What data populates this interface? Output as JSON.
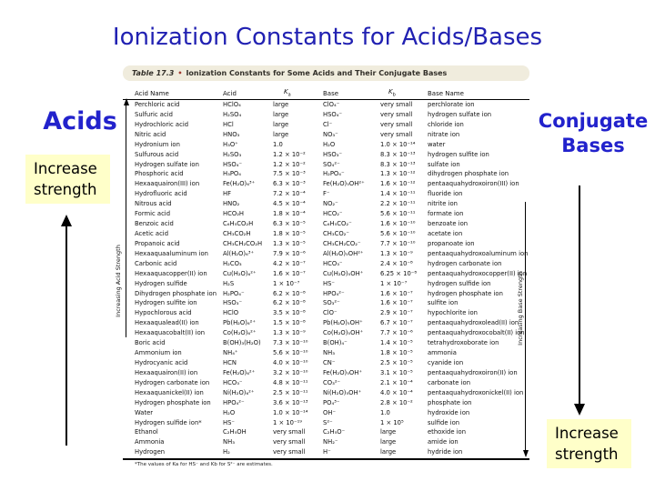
{
  "slide": {
    "title": "Ionization Constants for Acids/Bases",
    "acids_label": "Acids",
    "conjugate_label_line1": "Conjugate",
    "conjugate_label_line2": "Bases",
    "increase_strength": "Increase strength",
    "colors": {
      "title_blue": "#2121b2",
      "label_blue": "#2222cc",
      "highlight_yellow": "#ffffc9",
      "caption_bar_cream": "#f0ecdd"
    }
  },
  "table": {
    "caption_label": "Table 17.3",
    "caption_bullet": "•",
    "caption_title": "Ionization Constants for Some Acids and Their Conjugate Bases",
    "columns": {
      "acid_name": "Acid Name",
      "acid": "Acid",
      "k_symbol": "K",
      "ka_sub": "a",
      "base": "Base",
      "kb_sub": "b",
      "base_name": "Base Name"
    },
    "left_axis_label": "Increasing Acid Strength",
    "right_axis_label": "Increasing Base Strength",
    "footnote": "*The values of Ka for HS⁻ and Kb for S²⁻ are estimates.",
    "rows": [
      {
        "name": "Perchloric acid",
        "acid": "HClO₄",
        "ka": "large",
        "base": "ClO₄⁻",
        "kb": "very small",
        "base_name": "perchlorate ion"
      },
      {
        "name": "Sulfuric acid",
        "acid": "H₂SO₄",
        "ka": "large",
        "base": "HSO₄⁻",
        "kb": "very small",
        "base_name": "hydrogen sulfate ion"
      },
      {
        "name": "Hydrochloric acid",
        "acid": "HCl",
        "ka": "large",
        "base": "Cl⁻",
        "kb": "very small",
        "base_name": "chloride ion"
      },
      {
        "name": "Nitric acid",
        "acid": "HNO₃",
        "ka": "large",
        "base": "NO₃⁻",
        "kb": "very small",
        "base_name": "nitrate ion"
      },
      {
        "name": "Hydronium ion",
        "acid": "H₃O⁺",
        "ka": "1.0",
        "base": "H₂O",
        "kb": "1.0 × 10⁻¹⁴",
        "base_name": "water"
      },
      {
        "name": "Sulfurous acid",
        "acid": "H₂SO₃",
        "ka": "1.2 × 10⁻²",
        "base": "HSO₃⁻",
        "kb": "8.3 × 10⁻¹³",
        "base_name": "hydrogen sulfite ion"
      },
      {
        "name": "Hydrogen sulfate ion",
        "acid": "HSO₄⁻",
        "ka": "1.2 × 10⁻²",
        "base": "SO₄²⁻",
        "kb": "8.3 × 10⁻¹³",
        "base_name": "sulfate ion"
      },
      {
        "name": "Phosphoric acid",
        "acid": "H₃PO₄",
        "ka": "7.5 × 10⁻³",
        "base": "H₂PO₄⁻",
        "kb": "1.3 × 10⁻¹²",
        "base_name": "dihydrogen phosphate ion"
      },
      {
        "name": "Hexaaquairon(III) ion",
        "acid": "Fe(H₂O)₆³⁺",
        "ka": "6.3 × 10⁻³",
        "base": "Fe(H₂O)₅OH²⁺",
        "kb": "1.6 × 10⁻¹²",
        "base_name": "pentaaquahydroxoiron(III) ion"
      },
      {
        "name": "Hydrofluoric acid",
        "acid": "HF",
        "ka": "7.2 × 10⁻⁴",
        "base": "F⁻",
        "kb": "1.4 × 10⁻¹¹",
        "base_name": "fluoride ion"
      },
      {
        "name": "Nitrous acid",
        "acid": "HNO₂",
        "ka": "4.5 × 10⁻⁴",
        "base": "NO₂⁻",
        "kb": "2.2 × 10⁻¹¹",
        "base_name": "nitrite ion"
      },
      {
        "name": "Formic acid",
        "acid": "HCO₂H",
        "ka": "1.8 × 10⁻⁴",
        "base": "HCO₂⁻",
        "kb": "5.6 × 10⁻¹¹",
        "base_name": "formate ion"
      },
      {
        "name": "Benzoic acid",
        "acid": "C₆H₅CO₂H",
        "ka": "6.3 × 10⁻⁵",
        "base": "C₆H₅CO₂⁻",
        "kb": "1.6 × 10⁻¹⁰",
        "base_name": "benzoate ion"
      },
      {
        "name": "Acetic acid",
        "acid": "CH₃CO₂H",
        "ka": "1.8 × 10⁻⁵",
        "base": "CH₃CO₂⁻",
        "kb": "5.6 × 10⁻¹⁰",
        "base_name": "acetate ion"
      },
      {
        "name": "Propanoic acid",
        "acid": "CH₃CH₂CO₂H",
        "ka": "1.3 × 10⁻⁵",
        "base": "CH₃CH₂CO₂⁻",
        "kb": "7.7 × 10⁻¹⁰",
        "base_name": "propanoate ion"
      },
      {
        "name": "Hexaaquaaluminum ion",
        "acid": "Al(H₂O)₆³⁺",
        "ka": "7.9 × 10⁻⁶",
        "base": "Al(H₂O)₅OH²⁺",
        "kb": "1.3 × 10⁻⁹",
        "base_name": "pentaaquahydroxoaluminum ion"
      },
      {
        "name": "Carbonic acid",
        "acid": "H₂CO₃",
        "ka": "4.2 × 10⁻⁷",
        "base": "HCO₃⁻",
        "kb": "2.4 × 10⁻⁸",
        "base_name": "hydrogen carbonate ion"
      },
      {
        "name": "Hexaaquacopper(II) ion",
        "acid": "Cu(H₂O)₆²⁺",
        "ka": "1.6 × 10⁻⁷",
        "base": "Cu(H₂O)₅OH⁺",
        "kb": "6.25 × 10⁻⁸",
        "base_name": "pentaaquahydroxocopper(II) ion"
      },
      {
        "name": "Hydrogen sulfide",
        "acid": "H₂S",
        "ka": "1 × 10⁻⁷",
        "base": "HS⁻",
        "kb": "1 × 10⁻⁷",
        "base_name": "hydrogen sulfide ion"
      },
      {
        "name": "Dihydrogen phosphate ion",
        "acid": "H₂PO₄⁻",
        "ka": "6.2 × 10⁻⁸",
        "base": "HPO₄²⁻",
        "kb": "1.6 × 10⁻⁷",
        "base_name": "hydrogen phosphate ion"
      },
      {
        "name": "Hydrogen sulfite ion",
        "acid": "HSO₃⁻",
        "ka": "6.2 × 10⁻⁸",
        "base": "SO₃²⁻",
        "kb": "1.6 × 10⁻⁷",
        "base_name": "sulfite ion"
      },
      {
        "name": "Hypochlorous acid",
        "acid": "HClO",
        "ka": "3.5 × 10⁻⁸",
        "base": "ClO⁻",
        "kb": "2.9 × 10⁻⁷",
        "base_name": "hypochlorite ion"
      },
      {
        "name": "Hexaaqualead(II) ion",
        "acid": "Pb(H₂O)₆²⁺",
        "ka": "1.5 × 10⁻⁸",
        "base": "Pb(H₂O)₅OH⁺",
        "kb": "6.7 × 10⁻⁷",
        "base_name": "pentaaquahydroxolead(II) ion"
      },
      {
        "name": "Hexaaquacobalt(II) ion",
        "acid": "Co(H₂O)₆²⁺",
        "ka": "1.3 × 10⁻⁹",
        "base": "Co(H₂O)₅OH⁺",
        "kb": "7.7 × 10⁻⁶",
        "base_name": "pentaaquahydroxocobalt(II) ion"
      },
      {
        "name": "Boric acid",
        "acid": "B(OH)₃(H₂O)",
        "ka": "7.3 × 10⁻¹⁰",
        "base": "B(OH)₄⁻",
        "kb": "1.4 × 10⁻⁵",
        "base_name": "tetrahydroxoborate ion"
      },
      {
        "name": "Ammonium ion",
        "acid": "NH₄⁺",
        "ka": "5.6 × 10⁻¹⁰",
        "base": "NH₃",
        "kb": "1.8 × 10⁻⁵",
        "base_name": "ammonia"
      },
      {
        "name": "Hydrocyanic acid",
        "acid": "HCN",
        "ka": "4.0 × 10⁻¹⁰",
        "base": "CN⁻",
        "kb": "2.5 × 10⁻⁵",
        "base_name": "cyanide ion"
      },
      {
        "name": "Hexaaquairon(II) ion",
        "acid": "Fe(H₂O)₆²⁺",
        "ka": "3.2 × 10⁻¹⁰",
        "base": "Fe(H₂O)₅OH⁺",
        "kb": "3.1 × 10⁻⁵",
        "base_name": "pentaaquahydroxoiron(II) ion"
      },
      {
        "name": "Hydrogen carbonate ion",
        "acid": "HCO₃⁻",
        "ka": "4.8 × 10⁻¹¹",
        "base": "CO₃²⁻",
        "kb": "2.1 × 10⁻⁴",
        "base_name": "carbonate ion"
      },
      {
        "name": "Hexaaquanickel(II) ion",
        "acid": "Ni(H₂O)₆²⁺",
        "ka": "2.5 × 10⁻¹¹",
        "base": "Ni(H₂O)₅OH⁺",
        "kb": "4.0 × 10⁻⁴",
        "base_name": "pentaaquahydroxonickel(II) ion"
      },
      {
        "name": "Hydrogen phosphate ion",
        "acid": "HPO₄²⁻",
        "ka": "3.6 × 10⁻¹³",
        "base": "PO₄³⁻",
        "kb": "2.8 × 10⁻²",
        "base_name": "phosphate ion"
      },
      {
        "name": "Water",
        "acid": "H₂O",
        "ka": "1.0 × 10⁻¹⁴",
        "base": "OH⁻",
        "kb": "1.0",
        "base_name": "hydroxide ion"
      },
      {
        "name": "Hydrogen sulfide ion*",
        "acid": "HS⁻",
        "ka": "1 × 10⁻¹⁹",
        "base": "S²⁻",
        "kb": "1 × 10⁵",
        "base_name": "sulfide ion"
      },
      {
        "name": "Ethanol",
        "acid": "C₂H₅OH",
        "ka": "very small",
        "base": "C₂H₅O⁻",
        "kb": "large",
        "base_name": "ethoxide ion"
      },
      {
        "name": "Ammonia",
        "acid": "NH₃",
        "ka": "very small",
        "base": "NH₂⁻",
        "kb": "large",
        "base_name": "amide ion"
      },
      {
        "name": "Hydrogen",
        "acid": "H₂",
        "ka": "very small",
        "base": "H⁻",
        "kb": "large",
        "base_name": "hydride ion"
      }
    ]
  }
}
